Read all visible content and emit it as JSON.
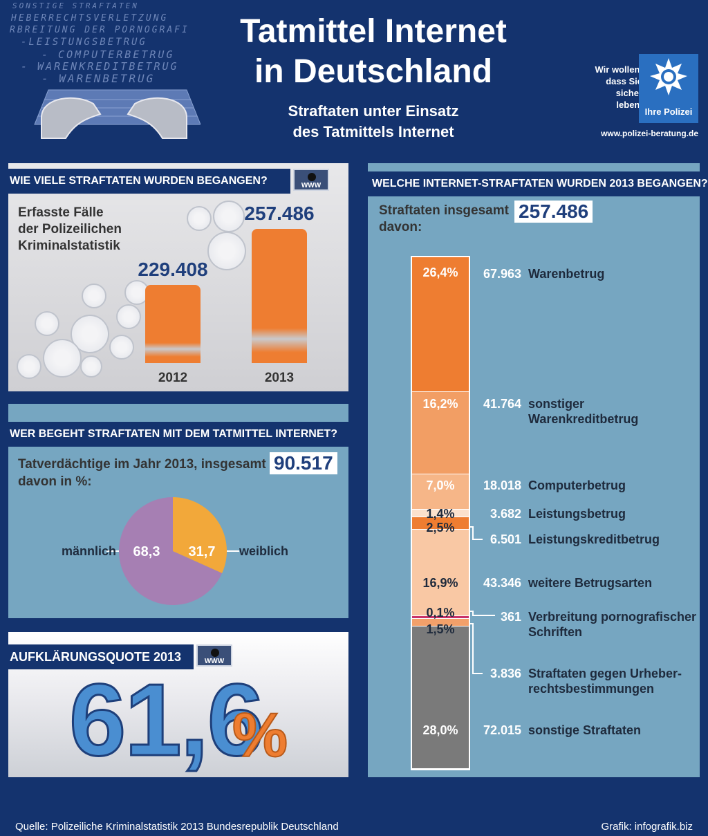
{
  "header": {
    "title_line1": "Tatmittel Internet",
    "title_line2": "in Deutschland",
    "subtitle_line1": "Straftaten unter Einsatz",
    "subtitle_line2": "des Tatmittels Internet",
    "keywords": [
      "SONSTIGE STRAFTATEN",
      "HEBERRECHTSVERLETZUNG",
      "RBREITUNG DER PORNOGRAFI",
      "-LEISTUNGSBETRUG",
      "- COMPUTERBETRUG",
      "- WARENKREDITBETRUG",
      "- WARENBETRUG"
    ],
    "logo_text_1": "Wir wollen,",
    "logo_text_2": "dass Sie",
    "logo_text_3": "sicher leben.",
    "logo_brand": "Ihre Polizei",
    "logo_url": "www.polizei-beratung.de"
  },
  "panel1": {
    "heading": "WIE VIELE STRAFTATEN WURDEN BEGANGEN?",
    "desc_line1": "Erfasste Fälle",
    "desc_line2": "der Polizeilichen",
    "desc_line3": "Kriminalstatistik",
    "www_label": "WWW"
  },
  "panel2": {
    "heading": "WER BEGEHT STRAFTATEN MIT DEM TATMITTEL INTERNET?",
    "intro": "Tatverdächtige im Jahr 2013, insgesamt",
    "total": "90.517",
    "intro2": "davon in %:"
  },
  "panel3": {
    "heading": "AUFKLÄRUNGSQUOTE 2013",
    "value": "61,6",
    "percent_sign": "%",
    "www_label": "WWW"
  },
  "panel4": {
    "heading": "WELCHE INTERNET-STRAFTATEN WURDEN 2013 BEGANGEN?",
    "total_label": "Straftaten insgesamt",
    "total": "257.486",
    "davon": "davon:"
  },
  "footer": {
    "source": "Quelle: Polizeiliche Kriminalstatistik 2013 Bundesrepublik Deutschland",
    "credit": "Grafik: infografik.biz"
  },
  "colors": {
    "navy": "#14336e",
    "orange": "#ee7d31",
    "bluepanel": "#76a6c1",
    "purple": "#a67fb3",
    "yellow": "#f2a83a"
  },
  "chart_data": [
    {
      "type": "bar",
      "title": "WIE VIELE STRAFTATEN WURDEN BEGANGEN?",
      "categories": [
        "2012",
        "2013"
      ],
      "values": [
        229408,
        257486
      ],
      "labels": [
        "229.408",
        "257.486"
      ],
      "color": "#ee7d31"
    },
    {
      "type": "pie",
      "title": "Tatverdächtige im Jahr 2013",
      "slices": [
        {
          "label": "männlich",
          "value": 68.3,
          "text": "68,3",
          "color": "#a67fb3"
        },
        {
          "label": "weiblich",
          "value": 31.7,
          "text": "31,7",
          "color": "#f2a83a"
        }
      ]
    },
    {
      "type": "bar",
      "subtype": "stacked-100",
      "title": "WELCHE INTERNET-STRAFTATEN WURDEN 2013 BEGANGEN?",
      "segments": [
        {
          "pct": 26.4,
          "pct_text": "26,4%",
          "value": "67.963",
          "label": "Warenbetrug",
          "color": "#ee7d31"
        },
        {
          "pct": 16.2,
          "pct_text": "16,2%",
          "value": "41.764",
          "label": "sonstiger",
          "label2": "Warenkreditbetrug",
          "color": "#f29e64"
        },
        {
          "pct": 7.0,
          "pct_text": "7,0%",
          "value": "18.018",
          "label": "Computerbetrug",
          "color": "#f6b688"
        },
        {
          "pct": 1.4,
          "pct_text": "1,4%",
          "value": "3.682",
          "label": "Leistungsbetrug",
          "color": "#fbe1cc"
        },
        {
          "pct": 2.5,
          "pct_text": "2,5%",
          "value": "6.501",
          "label": "Leistungskreditbetrug",
          "color": "#ee7d31"
        },
        {
          "pct": 16.9,
          "pct_text": "16,9%",
          "value": "43.346",
          "label": "weitere Betrugsarten",
          "color": "#f9c8a4"
        },
        {
          "pct": 0.1,
          "pct_text": "0,1%",
          "value": "361",
          "label": "Verbreitung pornografischer",
          "label2": "Schriften",
          "color": "#c8336a"
        },
        {
          "pct": 1.5,
          "pct_text": "1,5%",
          "value": "3.836",
          "label": "Straftaten gegen Urheber-",
          "label2": "rechtsbestimmungen",
          "color": "#f2a06a"
        },
        {
          "pct": 28.0,
          "pct_text": "28,0%",
          "value": "72.015",
          "label": "sonstige Straftaten",
          "color": "#7a7a7a"
        }
      ]
    }
  ]
}
